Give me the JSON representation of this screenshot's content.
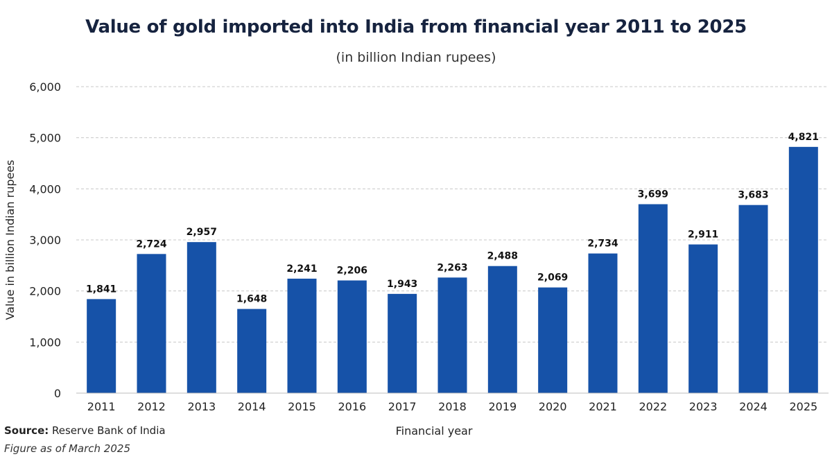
{
  "chart_data": {
    "type": "bar",
    "title": "Value of gold imported into India from financial year 2011 to 2025",
    "subtitle": "(in billion Indian rupees)",
    "xlabel": "Financial year",
    "ylabel": "Value in billion Indian rupees",
    "categories": [
      "2011",
      "2012",
      "2013",
      "2014",
      "2015",
      "2016",
      "2017",
      "2018",
      "2019",
      "2020",
      "2021",
      "2022",
      "2023",
      "2024",
      "2025"
    ],
    "values": [
      1841,
      2724,
      2957,
      1648,
      2241,
      2206,
      1943,
      2263,
      2488,
      2069,
      2734,
      3699,
      2911,
      3683,
      4821
    ],
    "value_labels": [
      "1,841",
      "2,724",
      "2,957",
      "1,648",
      "2,241",
      "2,206",
      "1,943",
      "2,263",
      "2,488",
      "2,069",
      "2,734",
      "3,699",
      "2,911",
      "3,683",
      "4,821"
    ],
    "ylim": [
      0,
      6000
    ],
    "yticks": [
      0,
      1000,
      2000,
      3000,
      4000,
      5000,
      6000
    ],
    "ytick_labels": [
      "0",
      "1,000",
      "2,000",
      "3,000",
      "4,000",
      "5,000",
      "6,000"
    ],
    "grid": true,
    "bar_color": "#1652a8"
  },
  "source": {
    "label": "Source:",
    "text": " Reserve Bank of India"
  },
  "note": "Figure as of March 2025"
}
